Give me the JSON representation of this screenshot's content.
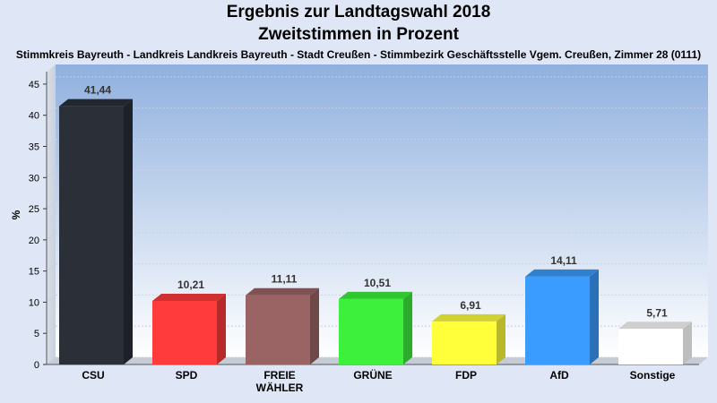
{
  "header": {
    "title": "Ergebnis zur Landtagswahl 2018",
    "subtitle": "Zweitstimmen in Prozent",
    "location": "Stimmkreis Bayreuth - Landkreis Landkreis Bayreuth - Stadt Creußen - Stimmbezirk Geschäftsstelle Vgem. Creußen, Zimmer 28 (0111)"
  },
  "chart_data": {
    "type": "bar",
    "title": "Ergebnis zur Landtagswahl 2018",
    "subtitle": "Zweitstimmen in Prozent",
    "xlabel": "",
    "ylabel": "%",
    "ylim": [
      0,
      47
    ],
    "yticks": [
      0,
      5,
      10,
      15,
      20,
      25,
      30,
      35,
      40,
      45
    ],
    "grid": true,
    "categories": [
      {
        "label": "CSU",
        "value": 41.44,
        "value_label": "41,44",
        "color": "#2a2f38"
      },
      {
        "label": "SPD",
        "value": 10.21,
        "value_label": "10,21",
        "color": "#ff3b3b"
      },
      {
        "label": "FREIE\nWÄHLER",
        "value": 11.11,
        "value_label": "11,11",
        "color": "#9a6464"
      },
      {
        "label": "GRÜNE",
        "value": 10.51,
        "value_label": "10,51",
        "color": "#3cf03c"
      },
      {
        "label": "FDP",
        "value": 6.91,
        "value_label": "6,91",
        "color": "#ffff3a"
      },
      {
        "label": "AfD",
        "value": 14.11,
        "value_label": "14,11",
        "color": "#3a9cff"
      },
      {
        "label": "Sonstige",
        "value": 5.71,
        "value_label": "5,71",
        "color": "#ffffff"
      }
    ]
  }
}
